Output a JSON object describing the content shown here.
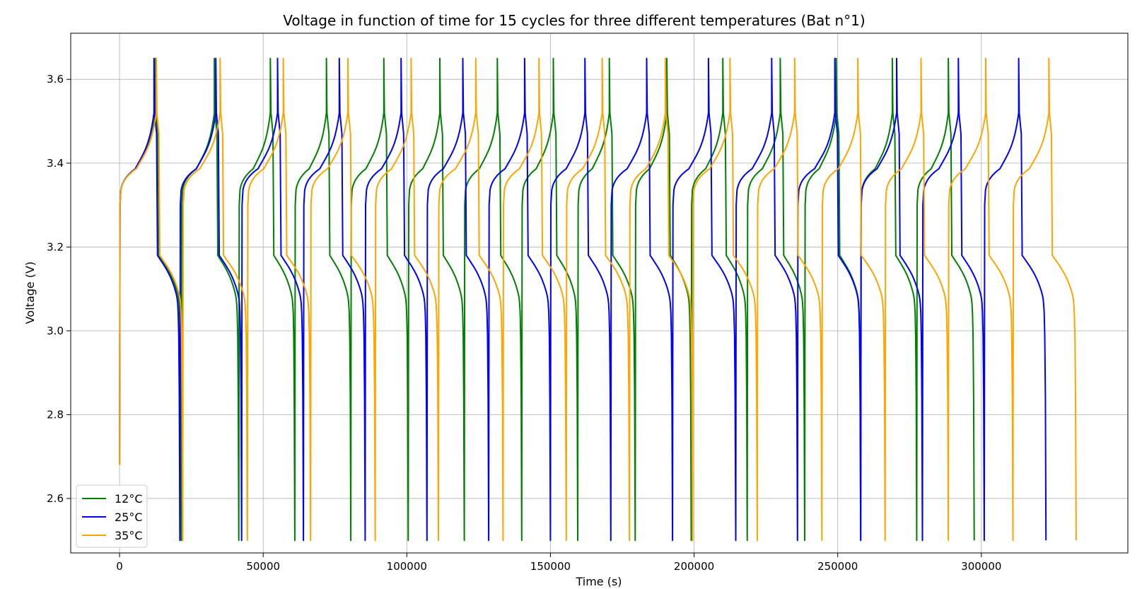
{
  "chart_data": {
    "type": "line",
    "title": "Voltage in function of time for 15 cycles for three different temperatures (Bat n°1)",
    "xlabel": "Time (s)",
    "ylabel": "Voltage (V)",
    "xlim": [
      -17000,
      351000
    ],
    "ylim": [
      2.47,
      3.71
    ],
    "xticks": [
      0,
      50000,
      100000,
      150000,
      200000,
      250000,
      300000
    ],
    "xtick_labels": [
      "0",
      "50000",
      "100000",
      "150000",
      "200000",
      "250000",
      "300000"
    ],
    "yticks": [
      2.6,
      2.8,
      3.0,
      3.2,
      3.4,
      3.6
    ],
    "ytick_labels": [
      "2.6",
      "2.8",
      "3.0",
      "3.2",
      "3.4",
      "3.6"
    ],
    "grid": true,
    "legend_position": "lower-left",
    "series": [
      {
        "name": "12°C",
        "color": "#008000",
        "cycles": [
          {
            "charge_start": 0,
            "charge_end": 12500,
            "discharge_end": 21500
          },
          {
            "charge_start": 21500,
            "charge_end": 33000,
            "discharge_end": 41500
          },
          {
            "charge_start": 41500,
            "charge_end": 52500,
            "discharge_end": 61000
          },
          {
            "charge_start": 61000,
            "charge_end": 72000,
            "discharge_end": 80500
          },
          {
            "charge_start": 80500,
            "charge_end": 92000,
            "discharge_end": 100500
          },
          {
            "charge_start": 100500,
            "charge_end": 111500,
            "discharge_end": 120000
          },
          {
            "charge_start": 120000,
            "charge_end": 131500,
            "discharge_end": 140000
          },
          {
            "charge_start": 140000,
            "charge_end": 151000,
            "discharge_end": 159500
          },
          {
            "charge_start": 159500,
            "charge_end": 170500,
            "discharge_end": 179500
          },
          {
            "charge_start": 179500,
            "charge_end": 190500,
            "discharge_end": 199000
          },
          {
            "charge_start": 199000,
            "charge_end": 210000,
            "discharge_end": 218500
          },
          {
            "charge_start": 218500,
            "charge_end": 230000,
            "discharge_end": 238500
          },
          {
            "charge_start": 238500,
            "charge_end": 249500,
            "discharge_end": 258000
          },
          {
            "charge_start": 258000,
            "charge_end": 269000,
            "discharge_end": 277500
          },
          {
            "charge_start": 277500,
            "charge_end": 288500,
            "discharge_end": 297500
          }
        ]
      },
      {
        "name": "25°C",
        "color": "#0000ff",
        "cycles": [
          {
            "charge_start": 0,
            "charge_end": 12000,
            "discharge_end": 21000
          },
          {
            "charge_start": 21000,
            "charge_end": 33500,
            "discharge_end": 42500
          },
          {
            "charge_start": 42500,
            "charge_end": 55000,
            "discharge_end": 64000
          },
          {
            "charge_start": 64000,
            "charge_end": 76500,
            "discharge_end": 85500
          },
          {
            "charge_start": 85500,
            "charge_end": 98000,
            "discharge_end": 107000
          },
          {
            "charge_start": 107000,
            "charge_end": 119500,
            "discharge_end": 128500
          },
          {
            "charge_start": 128500,
            "charge_end": 141000,
            "discharge_end": 150000
          },
          {
            "charge_start": 150000,
            "charge_end": 162000,
            "discharge_end": 171000
          },
          {
            "charge_start": 171000,
            "charge_end": 183500,
            "discharge_end": 192500
          },
          {
            "charge_start": 192500,
            "charge_end": 205000,
            "discharge_end": 214500
          },
          {
            "charge_start": 214500,
            "charge_end": 227000,
            "discharge_end": 236000
          },
          {
            "charge_start": 236000,
            "charge_end": 249000,
            "discharge_end": 258000
          },
          {
            "charge_start": 258000,
            "charge_end": 270500,
            "discharge_end": 279500
          },
          {
            "charge_start": 279500,
            "charge_end": 292000,
            "discharge_end": 301000
          },
          {
            "charge_start": 301000,
            "charge_end": 313000,
            "discharge_end": 322500
          }
        ]
      },
      {
        "name": "35°C",
        "color": "#ffa500",
        "cycles": [
          {
            "charge_start": 0,
            "charge_end": 12800,
            "discharge_end": 22000
          },
          {
            "charge_start": 22000,
            "charge_end": 35000,
            "discharge_end": 44500
          },
          {
            "charge_start": 44500,
            "charge_end": 57000,
            "discharge_end": 66500
          },
          {
            "charge_start": 66500,
            "charge_end": 79500,
            "discharge_end": 89000
          },
          {
            "charge_start": 89000,
            "charge_end": 101500,
            "discharge_end": 111000
          },
          {
            "charge_start": 111000,
            "charge_end": 124000,
            "discharge_end": 133500
          },
          {
            "charge_start": 133500,
            "charge_end": 146000,
            "discharge_end": 155500
          },
          {
            "charge_start": 155500,
            "charge_end": 168000,
            "discharge_end": 177500
          },
          {
            "charge_start": 177500,
            "charge_end": 190000,
            "discharge_end": 199500
          },
          {
            "charge_start": 199500,
            "charge_end": 212500,
            "discharge_end": 222000
          },
          {
            "charge_start": 222000,
            "charge_end": 235000,
            "discharge_end": 244500
          },
          {
            "charge_start": 244500,
            "charge_end": 257000,
            "discharge_end": 266500
          },
          {
            "charge_start": 266500,
            "charge_end": 279000,
            "discharge_end": 288500
          },
          {
            "charge_start": 288500,
            "charge_end": 301500,
            "discharge_end": 311000
          },
          {
            "charge_start": 311000,
            "charge_end": 323500,
            "discharge_end": 333000
          }
        ]
      }
    ],
    "voltage_profile": {
      "initial_voltage": 2.68,
      "charge_cutoff": 3.65,
      "discharge_cutoff": 2.5,
      "charge_plateau": [
        3.3,
        3.52
      ],
      "discharge_plateau": [
        3.18,
        3.0
      ]
    }
  }
}
